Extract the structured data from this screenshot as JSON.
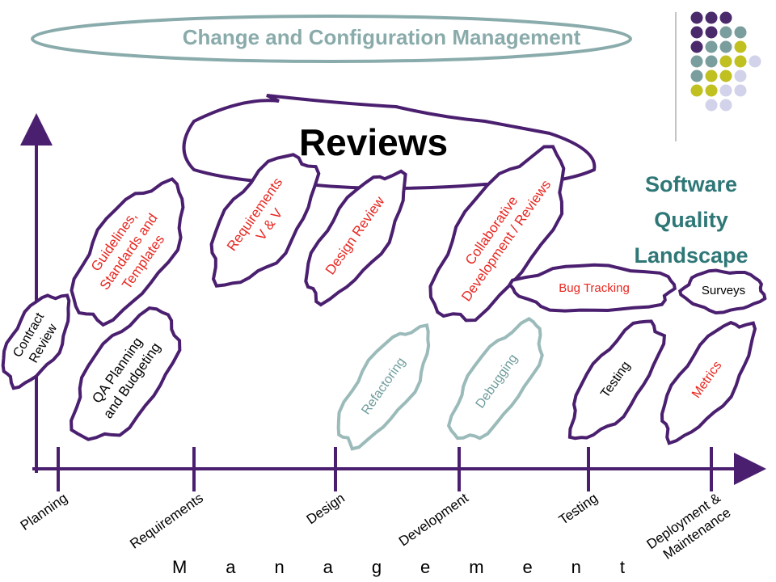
{
  "header": {
    "title": "Change and Configuration Management"
  },
  "reviews": "Reviews",
  "landscape": {
    "lines": [
      "Software",
      "Quality",
      "Landscape"
    ]
  },
  "blobs": [
    {
      "lines": [
        "Contract",
        "Review"
      ]
    },
    {
      "lines": [
        "Guidelines,",
        "Standards and",
        "Templates"
      ]
    },
    {
      "lines": [
        "QA Planning",
        "and Budgeting"
      ]
    },
    {
      "lines": [
        "Requirements",
        "V & V"
      ]
    },
    {
      "lines": [
        "Design Review"
      ]
    },
    {
      "lines": [
        "Collaborative",
        "Development / Reviews"
      ]
    },
    {
      "lines": [
        "Bug Tracking"
      ]
    },
    {
      "lines": [
        "Surveys"
      ]
    },
    {
      "lines": [
        "Refactoring"
      ]
    },
    {
      "lines": [
        "Debugging"
      ]
    },
    {
      "lines": [
        "Testing"
      ]
    },
    {
      "lines": [
        "Metrics"
      ]
    }
  ],
  "phases": [
    {
      "lines": [
        "Planning"
      ]
    },
    {
      "lines": [
        "Requirements"
      ]
    },
    {
      "lines": [
        "Design"
      ]
    },
    {
      "lines": [
        "Development"
      ]
    },
    {
      "lines": [
        "Testing"
      ]
    },
    {
      "lines": [
        "Deployment &",
        "Maintenance"
      ]
    }
  ],
  "footer": "Management"
}
